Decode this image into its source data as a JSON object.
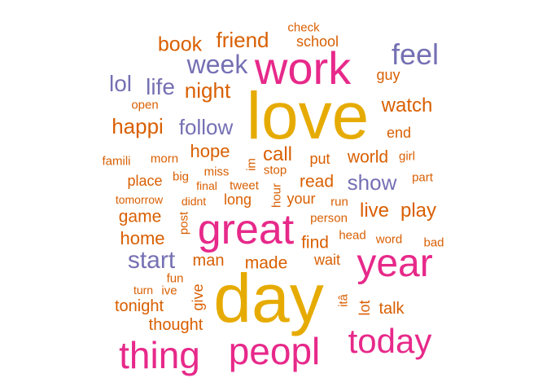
{
  "colors": {
    "orange": "#d95f02",
    "purple": "#7570b3",
    "pink": "#e7298a",
    "gold": "#e6ab02"
  },
  "words": [
    {
      "text": "love",
      "color": "gold"
    },
    {
      "text": "day",
      "color": "gold"
    },
    {
      "text": "great",
      "color": "pink"
    },
    {
      "text": "work",
      "color": "pink"
    },
    {
      "text": "peopl",
      "color": "pink"
    },
    {
      "text": "thing",
      "color": "pink"
    },
    {
      "text": "year",
      "color": "pink"
    },
    {
      "text": "today",
      "color": "pink"
    },
    {
      "text": "feel",
      "color": "purple"
    },
    {
      "text": "week",
      "color": "purple"
    },
    {
      "text": "start",
      "color": "purple"
    },
    {
      "text": "follow",
      "color": "purple"
    },
    {
      "text": "show",
      "color": "purple"
    },
    {
      "text": "lol",
      "color": "purple"
    },
    {
      "text": "life",
      "color": "purple"
    },
    {
      "text": "friend",
      "color": "orange"
    },
    {
      "text": "book",
      "color": "orange"
    },
    {
      "text": "night",
      "color": "orange"
    },
    {
      "text": "happi",
      "color": "orange"
    },
    {
      "text": "watch",
      "color": "orange"
    },
    {
      "text": "call",
      "color": "orange"
    },
    {
      "text": "hope",
      "color": "orange"
    },
    {
      "text": "live",
      "color": "orange"
    },
    {
      "text": "play",
      "color": "orange"
    },
    {
      "text": "home",
      "color": "orange"
    },
    {
      "text": "game",
      "color": "orange"
    },
    {
      "text": "made",
      "color": "orange"
    },
    {
      "text": "world",
      "color": "orange"
    },
    {
      "text": "read",
      "color": "orange"
    },
    {
      "text": "find",
      "color": "orange"
    },
    {
      "text": "man",
      "color": "orange"
    },
    {
      "text": "tonight",
      "color": "orange"
    },
    {
      "text": "thought",
      "color": "orange"
    },
    {
      "text": "talk",
      "color": "orange"
    },
    {
      "text": "school",
      "color": "orange"
    },
    {
      "text": "guy",
      "color": "orange"
    },
    {
      "text": "end",
      "color": "orange"
    },
    {
      "text": "put",
      "color": "orange"
    },
    {
      "text": "place",
      "color": "orange"
    },
    {
      "text": "long",
      "color": "orange"
    },
    {
      "text": "your",
      "color": "orange"
    },
    {
      "text": "wait",
      "color": "orange"
    },
    {
      "text": "give",
      "color": "orange"
    },
    {
      "text": "lot",
      "color": "orange"
    },
    {
      "text": "check",
      "color": "orange"
    },
    {
      "text": "open",
      "color": "orange"
    },
    {
      "text": "famili",
      "color": "orange"
    },
    {
      "text": "morn",
      "color": "orange"
    },
    {
      "text": "girl",
      "color": "orange"
    },
    {
      "text": "big",
      "color": "orange"
    },
    {
      "text": "miss",
      "color": "orange"
    },
    {
      "text": "im",
      "color": "orange"
    },
    {
      "text": "stop",
      "color": "orange"
    },
    {
      "text": "part",
      "color": "orange"
    },
    {
      "text": "final",
      "color": "orange"
    },
    {
      "text": "tweet",
      "color": "orange"
    },
    {
      "text": "tomorrow",
      "color": "orange"
    },
    {
      "text": "didnt",
      "color": "orange"
    },
    {
      "text": "hour",
      "color": "orange"
    },
    {
      "text": "run",
      "color": "orange"
    },
    {
      "text": "post",
      "color": "orange"
    },
    {
      "text": "person",
      "color": "orange"
    },
    {
      "text": "head",
      "color": "orange"
    },
    {
      "text": "word",
      "color": "orange"
    },
    {
      "text": "bad",
      "color": "orange"
    },
    {
      "text": "fun",
      "color": "orange"
    },
    {
      "text": "turn",
      "color": "orange"
    },
    {
      "text": "ive",
      "color": "orange"
    },
    {
      "text": "itâ",
      "color": "orange"
    }
  ]
}
